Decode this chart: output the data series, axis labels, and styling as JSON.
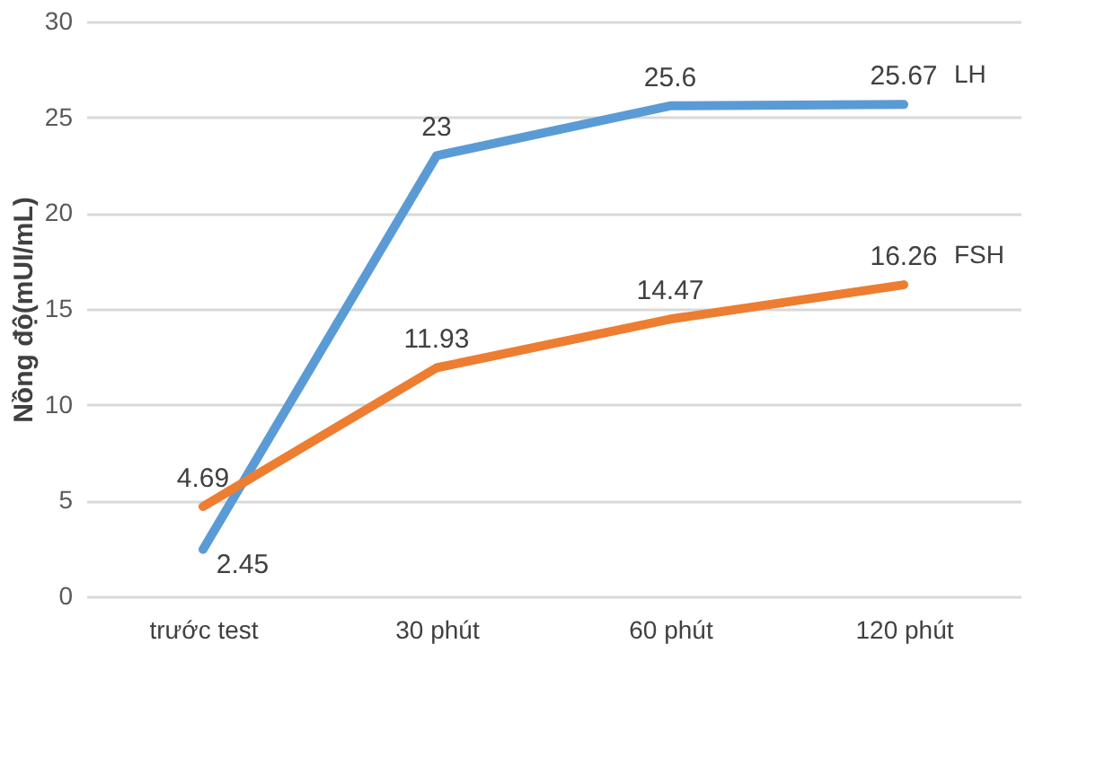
{
  "chart_data": {
    "type": "line",
    "ylabel": "Nồng độ(mUI/mL)",
    "categories": [
      "trước test",
      "30 phút",
      "60 phút",
      "120 phút"
    ],
    "series": [
      {
        "name": "LH",
        "color": "#5b9bd5",
        "values": [
          2.45,
          23,
          25.6,
          25.67
        ]
      },
      {
        "name": "FSH",
        "color": "#ed7d31",
        "values": [
          4.69,
          11.93,
          14.47,
          16.26
        ]
      }
    ],
    "ylim": [
      0,
      30
    ],
    "yticks": [
      0,
      5,
      10,
      15,
      20,
      25,
      30
    ],
    "grid": "y",
    "legend": false,
    "marker": "none",
    "line_style": "solid",
    "data_labels": true
  }
}
